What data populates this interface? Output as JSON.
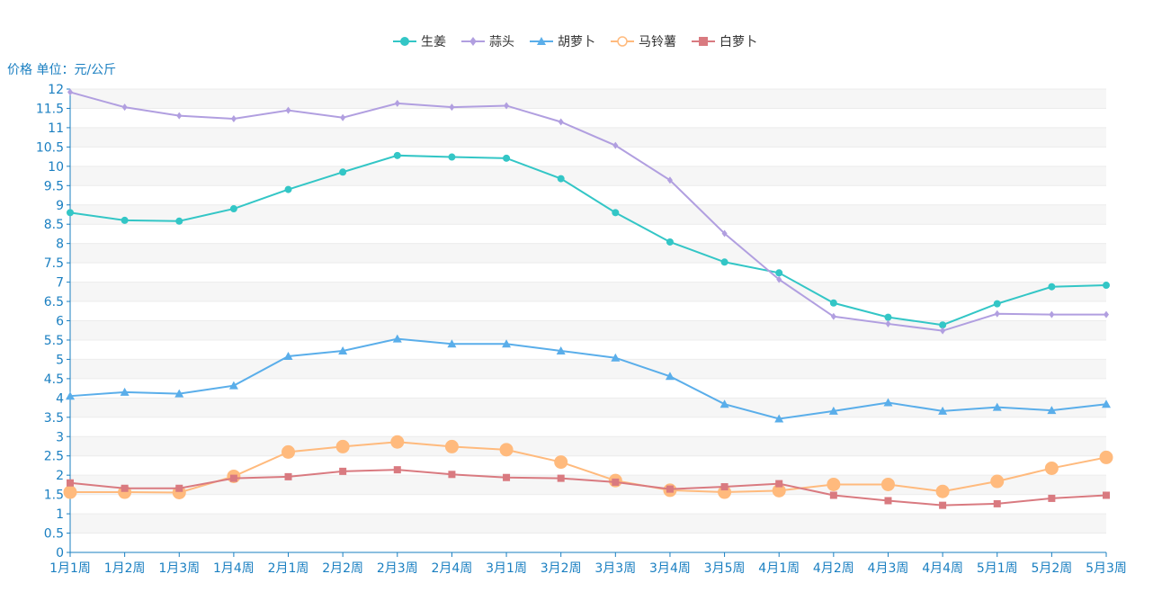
{
  "chart_data": {
    "type": "line",
    "title": "",
    "ylabel": "价格 单位：元/公斤",
    "xlabel": "",
    "ylim": [
      0,
      12
    ],
    "ytick_step": 0.5,
    "grid": true,
    "legend_position": "top-center",
    "categories": [
      "1月1周",
      "1月2周",
      "1月3周",
      "1月4周",
      "2月1周",
      "2月2周",
      "2月3周",
      "2月4周",
      "3月1周",
      "3月2周",
      "3月3周",
      "3月4周",
      "3月5周",
      "4月1周",
      "4月2周",
      "4月3周",
      "4月4周",
      "5月1周",
      "5月2周",
      "5月3周"
    ],
    "series": [
      {
        "name": "生姜",
        "color": "#33c6c6",
        "marker": "circle",
        "values": [
          8.8,
          8.6,
          8.58,
          8.9,
          9.4,
          9.85,
          10.28,
          10.24,
          10.21,
          9.68,
          8.8,
          8.04,
          7.52,
          7.24,
          6.46,
          6.09,
          5.89,
          6.44,
          6.88,
          6.92
        ]
      },
      {
        "name": "蒜头",
        "color": "#b19fe0",
        "marker": "diamond",
        "values": [
          11.92,
          11.53,
          11.31,
          11.23,
          11.45,
          11.26,
          11.63,
          11.53,
          11.57,
          11.15,
          10.54,
          9.64,
          8.26,
          7.07,
          6.11,
          5.92,
          5.74,
          6.18,
          6.16,
          6.16
        ]
      },
      {
        "name": "胡萝卜",
        "color": "#5aaeea",
        "marker": "triangle",
        "values": [
          4.05,
          4.15,
          4.11,
          4.32,
          5.08,
          5.22,
          5.53,
          5.4,
          5.4,
          5.22,
          5.04,
          4.56,
          3.84,
          3.46,
          3.66,
          3.88,
          3.66,
          3.76,
          3.68,
          3.84
        ]
      },
      {
        "name": "马铃薯",
        "color": "#ffba7d",
        "marker": "empty-circle",
        "values": [
          1.56,
          1.56,
          1.55,
          1.97,
          2.6,
          2.74,
          2.86,
          2.74,
          2.66,
          2.34,
          1.86,
          1.61,
          1.56,
          1.6,
          1.76,
          1.76,
          1.58,
          1.84,
          2.18,
          2.46
        ]
      },
      {
        "name": "白萝卜",
        "color": "#d97a80",
        "marker": "square",
        "values": [
          1.8,
          1.66,
          1.66,
          1.92,
          1.96,
          2.1,
          2.14,
          2.02,
          1.94,
          1.92,
          1.82,
          1.64,
          1.7,
          1.78,
          1.48,
          1.34,
          1.22,
          1.26,
          1.4,
          1.48
        ]
      }
    ]
  }
}
